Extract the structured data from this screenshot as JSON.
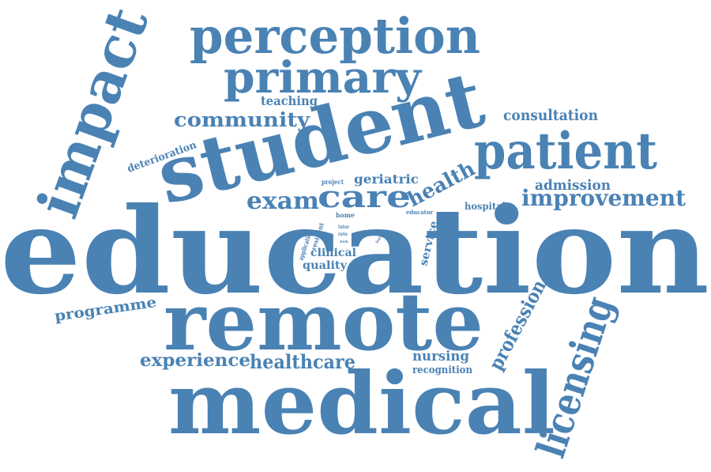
{
  "colors": {
    "word": "#4a82b4",
    "background": "#ffffff"
  },
  "words": [
    "education",
    "student",
    "remote",
    "medical",
    "impact",
    "perception",
    "primary",
    "patient",
    "care",
    "exam",
    "health",
    "improvement",
    "licensing",
    "profession",
    "community",
    "consultation",
    "experience",
    "healthcare",
    "programme",
    "teaching",
    "deterioration",
    "geriatric",
    "admission",
    "hospital",
    "nursing",
    "recognition",
    "quality",
    "clinical",
    "service",
    "project",
    "home",
    "educator",
    "application",
    "resident",
    "tutor",
    "rate",
    "learn",
    "study"
  ]
}
